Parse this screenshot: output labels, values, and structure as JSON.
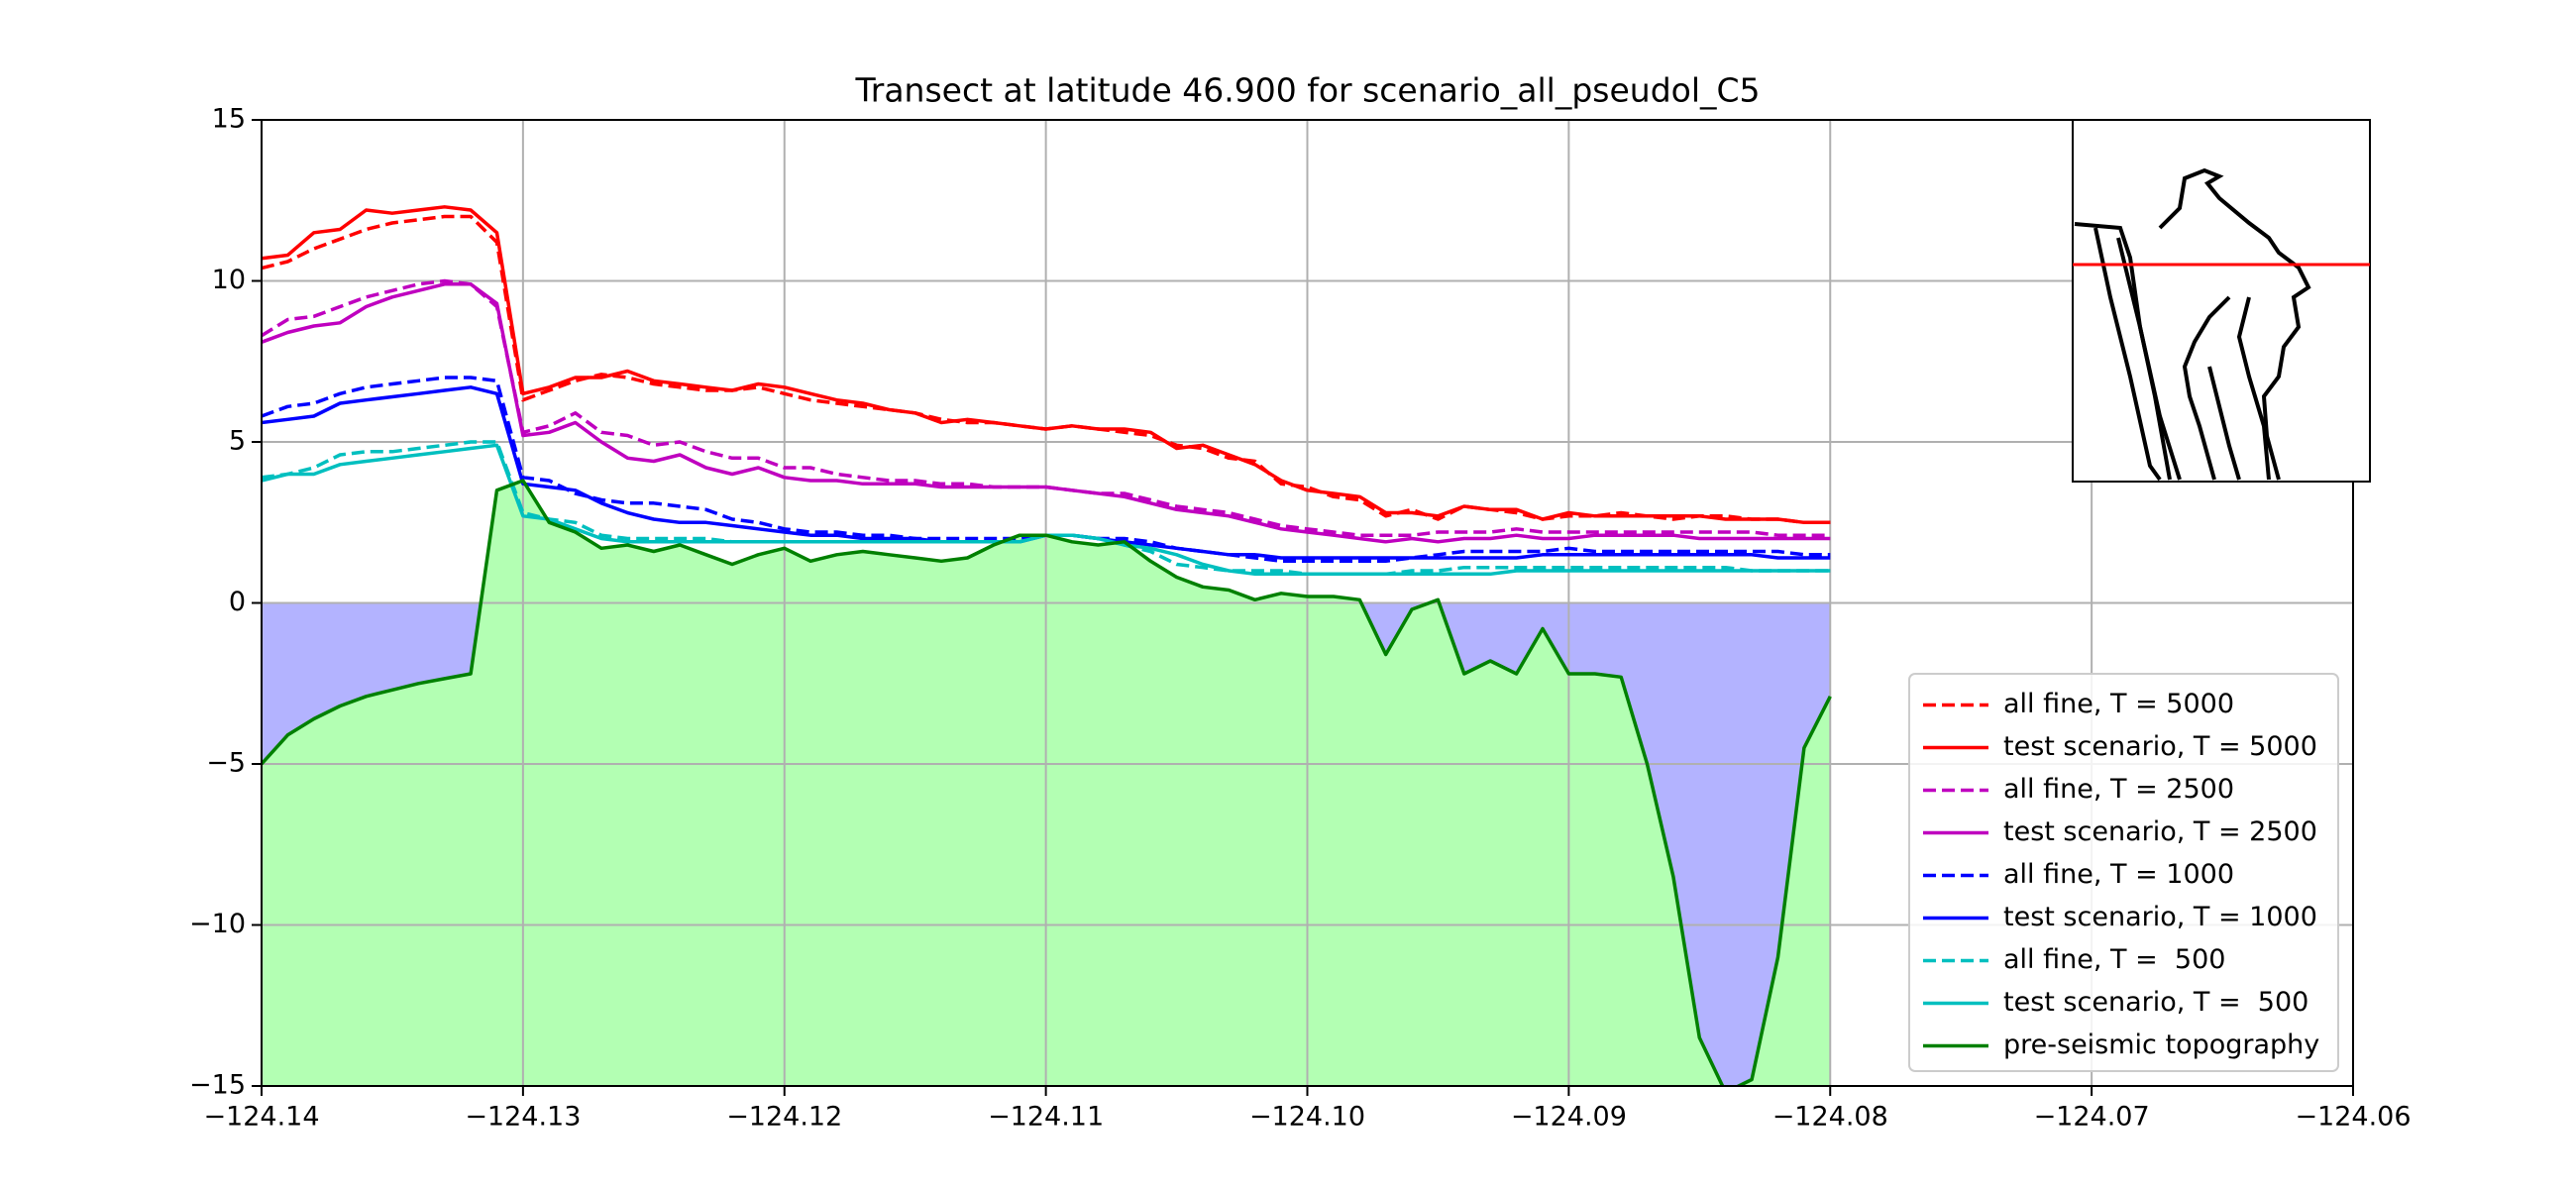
{
  "chart_data": {
    "type": "line",
    "title": "Transect at latitude 46.900 for scenario_all_pseudol_C5",
    "x": [
      -124.14,
      -124.139,
      -124.138,
      -124.137,
      -124.136,
      -124.135,
      -124.134,
      -124.133,
      -124.132,
      -124.131,
      -124.13,
      -124.129,
      -124.128,
      -124.127,
      -124.126,
      -124.125,
      -124.124,
      -124.123,
      -124.122,
      -124.121,
      -124.12,
      -124.119,
      -124.118,
      -124.117,
      -124.116,
      -124.115,
      -124.114,
      -124.113,
      -124.112,
      -124.111,
      -124.11,
      -124.109,
      -124.108,
      -124.107,
      -124.106,
      -124.105,
      -124.104,
      -124.103,
      -124.102,
      -124.101,
      -124.1,
      -124.099,
      -124.098,
      -124.097,
      -124.096,
      -124.095,
      -124.094,
      -124.093,
      -124.092,
      -124.091,
      -124.09,
      -124.089,
      -124.088,
      -124.087,
      -124.086,
      -124.085,
      -124.084,
      -124.083,
      -124.082,
      -124.081,
      -124.08
    ],
    "series": [
      {
        "name": "all fine, T = 5000",
        "color": "#ff0000",
        "linestyle": "dashed",
        "values": [
          10.4,
          10.6,
          11.0,
          11.3,
          11.6,
          11.8,
          11.9,
          12.0,
          12.0,
          11.2,
          6.3,
          6.6,
          6.9,
          7.1,
          7.0,
          6.8,
          6.7,
          6.6,
          6.6,
          6.7,
          6.5,
          6.3,
          6.2,
          6.1,
          6.0,
          5.9,
          5.7,
          5.6,
          5.6,
          5.5,
          5.4,
          5.5,
          5.4,
          5.3,
          5.2,
          4.9,
          4.8,
          4.5,
          4.4,
          3.7,
          3.6,
          3.3,
          3.2,
          2.7,
          2.9,
          2.6,
          3.0,
          2.9,
          2.8,
          2.6,
          2.7,
          2.7,
          2.8,
          2.7,
          2.6,
          2.7,
          2.7,
          2.6,
          2.6,
          2.5,
          2.5
        ]
      },
      {
        "name": "test scenario, T = 5000",
        "color": "#ff0000",
        "linestyle": "solid",
        "values": [
          10.7,
          10.8,
          11.5,
          11.6,
          12.2,
          12.1,
          12.2,
          12.3,
          12.2,
          11.5,
          6.5,
          6.7,
          7.0,
          7.0,
          7.2,
          6.9,
          6.8,
          6.7,
          6.6,
          6.8,
          6.7,
          6.5,
          6.3,
          6.2,
          6.0,
          5.9,
          5.6,
          5.7,
          5.6,
          5.5,
          5.4,
          5.5,
          5.4,
          5.4,
          5.3,
          4.8,
          4.9,
          4.6,
          4.3,
          3.8,
          3.5,
          3.4,
          3.3,
          2.8,
          2.8,
          2.7,
          3.0,
          2.9,
          2.9,
          2.6,
          2.8,
          2.7,
          2.7,
          2.7,
          2.7,
          2.7,
          2.6,
          2.6,
          2.6,
          2.5,
          2.5
        ]
      },
      {
        "name": "all fine, T = 2500",
        "color": "#bf00bf",
        "linestyle": "dashed",
        "values": [
          8.3,
          8.8,
          8.9,
          9.2,
          9.5,
          9.7,
          9.9,
          10.0,
          9.9,
          9.2,
          5.3,
          5.5,
          5.9,
          5.3,
          5.2,
          4.9,
          5.0,
          4.7,
          4.5,
          4.5,
          4.2,
          4.2,
          4.0,
          3.9,
          3.8,
          3.8,
          3.7,
          3.7,
          3.6,
          3.6,
          3.6,
          3.5,
          3.4,
          3.4,
          3.2,
          3.0,
          2.9,
          2.8,
          2.6,
          2.4,
          2.3,
          2.2,
          2.1,
          2.1,
          2.1,
          2.2,
          2.2,
          2.2,
          2.3,
          2.2,
          2.2,
          2.2,
          2.2,
          2.2,
          2.2,
          2.2,
          2.2,
          2.2,
          2.1,
          2.1,
          2.1
        ]
      },
      {
        "name": "test scenario, T = 2500",
        "color": "#bf00bf",
        "linestyle": "solid",
        "values": [
          8.1,
          8.4,
          8.6,
          8.7,
          9.2,
          9.5,
          9.7,
          9.9,
          9.9,
          9.3,
          5.2,
          5.3,
          5.6,
          5.0,
          4.5,
          4.4,
          4.6,
          4.2,
          4.0,
          4.2,
          3.9,
          3.8,
          3.8,
          3.7,
          3.7,
          3.7,
          3.6,
          3.6,
          3.6,
          3.6,
          3.6,
          3.5,
          3.4,
          3.3,
          3.1,
          2.9,
          2.8,
          2.7,
          2.5,
          2.3,
          2.2,
          2.1,
          2.0,
          1.9,
          2.0,
          1.9,
          2.0,
          2.0,
          2.1,
          2.0,
          2.0,
          2.1,
          2.1,
          2.1,
          2.1,
          2.0,
          2.0,
          2.0,
          2.0,
          2.0,
          2.0
        ]
      },
      {
        "name": "all fine, T = 1000",
        "color": "#0000ff",
        "linestyle": "dashed",
        "values": [
          5.8,
          6.1,
          6.2,
          6.5,
          6.7,
          6.8,
          6.9,
          7.0,
          7.0,
          6.9,
          3.9,
          3.8,
          3.4,
          3.2,
          3.1,
          3.1,
          3.0,
          2.9,
          2.6,
          2.5,
          2.3,
          2.2,
          2.2,
          2.1,
          2.1,
          2.0,
          2.0,
          2.0,
          2.0,
          2.0,
          2.1,
          2.1,
          2.0,
          2.0,
          1.9,
          1.7,
          1.6,
          1.5,
          1.4,
          1.3,
          1.3,
          1.3,
          1.3,
          1.3,
          1.4,
          1.5,
          1.6,
          1.6,
          1.6,
          1.6,
          1.7,
          1.6,
          1.6,
          1.6,
          1.6,
          1.6,
          1.6,
          1.6,
          1.6,
          1.5,
          1.5
        ]
      },
      {
        "name": "test scenario, T = 1000",
        "color": "#0000ff",
        "linestyle": "solid",
        "values": [
          5.6,
          5.7,
          5.8,
          6.2,
          6.3,
          6.4,
          6.5,
          6.6,
          6.7,
          6.5,
          3.7,
          3.6,
          3.5,
          3.1,
          2.8,
          2.6,
          2.5,
          2.5,
          2.4,
          2.3,
          2.2,
          2.1,
          2.1,
          2.0,
          2.0,
          2.0,
          1.9,
          1.9,
          1.9,
          1.9,
          2.1,
          2.1,
          2.0,
          1.9,
          1.8,
          1.7,
          1.6,
          1.5,
          1.5,
          1.4,
          1.4,
          1.4,
          1.4,
          1.4,
          1.4,
          1.4,
          1.4,
          1.4,
          1.4,
          1.5,
          1.5,
          1.5,
          1.5,
          1.5,
          1.5,
          1.5,
          1.5,
          1.5,
          1.4,
          1.4,
          1.4
        ]
      },
      {
        "name": "all fine, T =  500",
        "color": "#00bfbf",
        "linestyle": "dashed",
        "values": [
          3.9,
          4.0,
          4.2,
          4.6,
          4.7,
          4.7,
          4.8,
          4.9,
          5.0,
          5.0,
          2.8,
          2.6,
          2.5,
          2.1,
          2.0,
          2.0,
          2.0,
          2.0,
          1.9,
          1.9,
          1.9,
          1.9,
          1.9,
          1.9,
          1.9,
          1.9,
          1.9,
          1.9,
          1.9,
          1.9,
          2.1,
          2.1,
          2.0,
          1.8,
          1.6,
          1.2,
          1.1,
          1.0,
          1.0,
          1.0,
          0.9,
          0.9,
          0.9,
          0.9,
          1.0,
          1.0,
          1.1,
          1.1,
          1.1,
          1.1,
          1.1,
          1.1,
          1.1,
          1.1,
          1.1,
          1.1,
          1.1,
          1.0,
          1.0,
          1.0,
          1.0
        ]
      },
      {
        "name": "test scenario, T =  500",
        "color": "#00bfbf",
        "linestyle": "solid",
        "values": [
          3.8,
          4.0,
          4.0,
          4.3,
          4.4,
          4.5,
          4.6,
          4.7,
          4.8,
          4.9,
          2.7,
          2.6,
          2.3,
          2.0,
          1.9,
          1.9,
          1.9,
          1.9,
          1.9,
          1.9,
          1.9,
          1.9,
          1.9,
          1.9,
          1.9,
          1.9,
          1.9,
          1.9,
          1.9,
          1.9,
          2.1,
          2.1,
          2.0,
          1.8,
          1.7,
          1.5,
          1.2,
          1.0,
          0.9,
          0.9,
          0.9,
          0.9,
          0.9,
          0.9,
          0.9,
          0.9,
          0.9,
          0.9,
          1.0,
          1.0,
          1.0,
          1.0,
          1.0,
          1.0,
          1.0,
          1.0,
          1.0,
          1.0,
          1.0,
          1.0,
          1.0
        ]
      },
      {
        "name": "pre-seismic topography",
        "color": "#008000",
        "linestyle": "solid",
        "fill": "#b3ffb3",
        "water_fill": "#b3b3ff",
        "values": [
          -5.0,
          -4.1,
          -3.6,
          -3.2,
          -2.9,
          -2.7,
          -2.5,
          -2.35,
          -2.2,
          3.5,
          3.8,
          2.5,
          2.2,
          1.7,
          1.8,
          1.6,
          1.8,
          1.5,
          1.2,
          1.5,
          1.7,
          1.3,
          1.5,
          1.6,
          1.5,
          1.4,
          1.3,
          1.4,
          1.8,
          2.1,
          2.1,
          1.9,
          1.8,
          1.9,
          1.3,
          0.8,
          0.5,
          0.4,
          0.1,
          0.3,
          0.2,
          0.2,
          0.1,
          -1.6,
          -0.2,
          0.1,
          -2.2,
          -1.8,
          -2.2,
          -0.8,
          -2.2,
          -2.2,
          -2.3,
          -5.0,
          -8.5,
          -13.5,
          -15.2,
          -14.8,
          -11,
          -4.5,
          -2.9
        ]
      }
    ],
    "xlim": [
      -124.14,
      -124.06
    ],
    "xticks": [
      {
        "value": -124.14,
        "label": "−124.14"
      },
      {
        "value": -124.13,
        "label": "−124.13"
      },
      {
        "value": -124.12,
        "label": "−124.12"
      },
      {
        "value": -124.11,
        "label": "−124.11"
      },
      {
        "value": -124.1,
        "label": "−124.10"
      },
      {
        "value": -124.09,
        "label": "−124.09"
      },
      {
        "value": -124.08,
        "label": "−124.08"
      },
      {
        "value": -124.07,
        "label": "−124.07"
      },
      {
        "value": -124.06,
        "label": "−124.06"
      }
    ],
    "ylim": [
      -15,
      15
    ],
    "yticks": [
      15,
      10,
      5,
      0,
      {
        "value": -5,
        "label": "−5"
      },
      {
        "value": -10,
        "label": "−10"
      },
      {
        "value": -15,
        "label": "−15"
      }
    ],
    "grid": true,
    "legend": "lower right"
  }
}
